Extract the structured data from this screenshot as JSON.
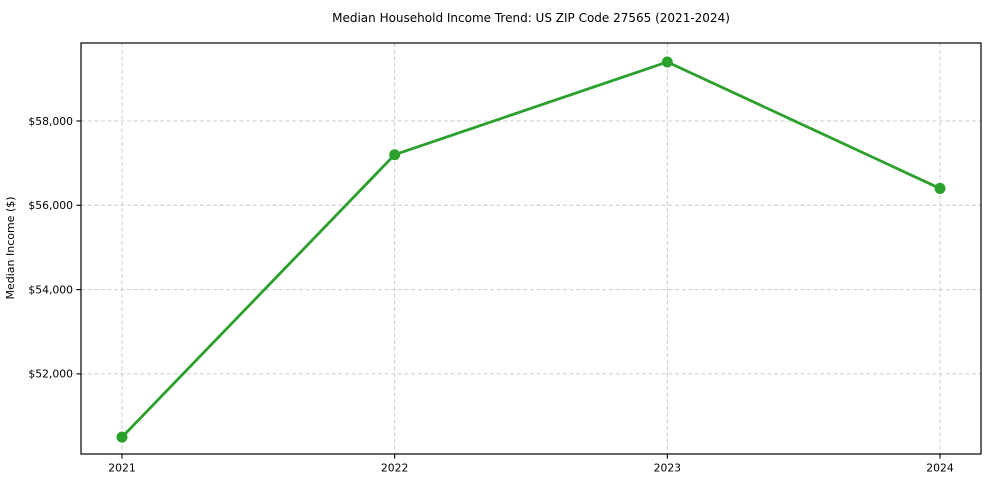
{
  "chart_data": {
    "type": "line",
    "title": "Median Household Income Trend: US ZIP Code 27565 (2021-2024)",
    "xlabel": "",
    "ylabel": "Median Income ($)",
    "categories": [
      "2021",
      "2022",
      "2023",
      "2024"
    ],
    "series": [
      {
        "values": [
          50500,
          57200,
          59400,
          56400
        ],
        "color": "#2ca02c",
        "marker": "circle"
      }
    ],
    "x_tick_labels": [
      "2021",
      "2022",
      "2023",
      "2024"
    ],
    "y_ticks": [
      52000,
      54000,
      56000,
      58000
    ],
    "y_tick_labels": [
      "$52,000",
      "$54,000",
      "$56,000",
      "$58,000"
    ],
    "ylim": [
      50100,
      59850
    ],
    "grid": true,
    "grid_style": "dashed",
    "legend": false,
    "colors": {
      "line": "#2ca02c",
      "grid": "#cccccc",
      "axis": "#000000",
      "text": "#000000",
      "background": "#ffffff"
    }
  }
}
